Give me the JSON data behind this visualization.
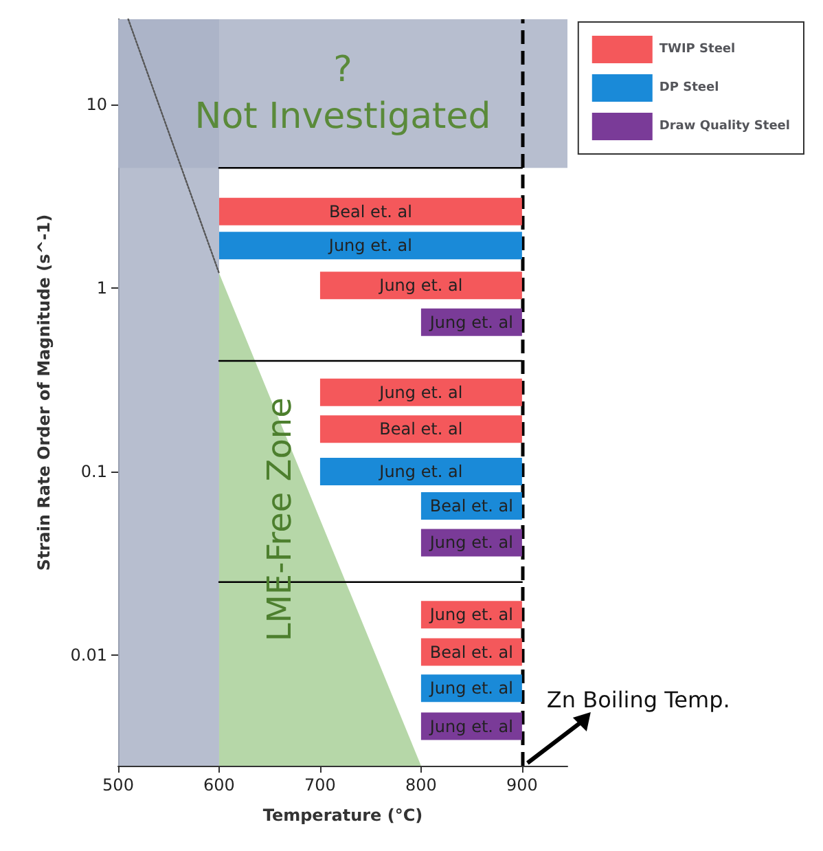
{
  "chart_data": {
    "type": "bar",
    "orientation": "horizontal",
    "xlabel": "Temperature (°C)",
    "ylabel": "Strain Rate Order of Magnitude (s^-1)",
    "log": "y",
    "xlim": [
      500,
      945
    ],
    "xticks": [
      500,
      600,
      700,
      800,
      900
    ],
    "ylim": [
      0.0025,
      29
    ],
    "yticks": [
      0.01,
      0.1,
      1,
      10
    ],
    "legend": "top right",
    "grid": false,
    "series": [
      {
        "name": "TWIP Steel",
        "color": "#f4585b",
        "x": [
          2.6,
          1.03,
          0.27,
          0.17,
          0.0166,
          0.0104
        ],
        "base": [
          600,
          700,
          700,
          700,
          800,
          800
        ],
        "values": [
          300,
          200,
          200,
          200,
          100,
          100
        ],
        "value_labels": [
          "Beal et. al",
          "Jung et. al",
          "Jung et. al",
          "Beal et. al",
          "Jung et. al",
          "Beal et. al"
        ]
      },
      {
        "name": "DP Steel",
        "color": "#1a8ad8",
        "x": [
          1.7,
          0.1,
          0.065,
          0.0066
        ],
        "base": [
          600,
          700,
          800,
          800
        ],
        "values": [
          300,
          200,
          100,
          100
        ],
        "value_labels": [
          "Jung et. al",
          "Jung et. al",
          "Beal et. al",
          "Jung et. al"
        ]
      },
      {
        "name": "Draw Quality Steel",
        "color": "#7a3b98",
        "x": [
          0.65,
          0.041,
          0.0041
        ],
        "base": [
          800,
          800,
          800
        ],
        "values": [
          100,
          100,
          100
        ],
        "value_labels": [
          "Jung et. al",
          "Jung et. al",
          "Jung et. al"
        ]
      },
      {
        "type": "area",
        "name": "LME-Free Zone",
        "color": "#b6d7a8",
        "x": [
          1.2,
          0.0025
        ],
        "values": [
          600,
          800
        ]
      },
      {
        "type": "line",
        "color": "#555555",
        "line_style": "dotted",
        "x": [
          29,
          1.2
        ],
        "values": [
          510,
          600
        ]
      },
      {
        "type": "line",
        "color": "#000000",
        "line_style": "solid",
        "x": [
          4.5,
          4.5
        ],
        "values": [
          600,
          900
        ]
      },
      {
        "type": "line",
        "color": "#000000",
        "line_style": "solid",
        "x": [
          0.4,
          0.4
        ],
        "values": [
          600,
          900
        ]
      },
      {
        "type": "line",
        "color": "#000000",
        "line_style": "solid",
        "x": [
          0.025,
          0.025
        ],
        "values": [
          600,
          900
        ]
      }
    ],
    "marker": "none",
    "bands": [
      {
        "axis": "x",
        "from": 500,
        "to": 600,
        "color": "#aab3c7"
      },
      {
        "axis": "y",
        "from": 4.5,
        "to": 29,
        "label": "?\nNot Investigated",
        "color": "#aab3c7"
      }
    ],
    "ref_lines": [
      {
        "axis": "x",
        "value": 900,
        "label": "Zn Boiling Temp.",
        "color": "#000000",
        "line_style": "dashed"
      }
    ]
  }
}
